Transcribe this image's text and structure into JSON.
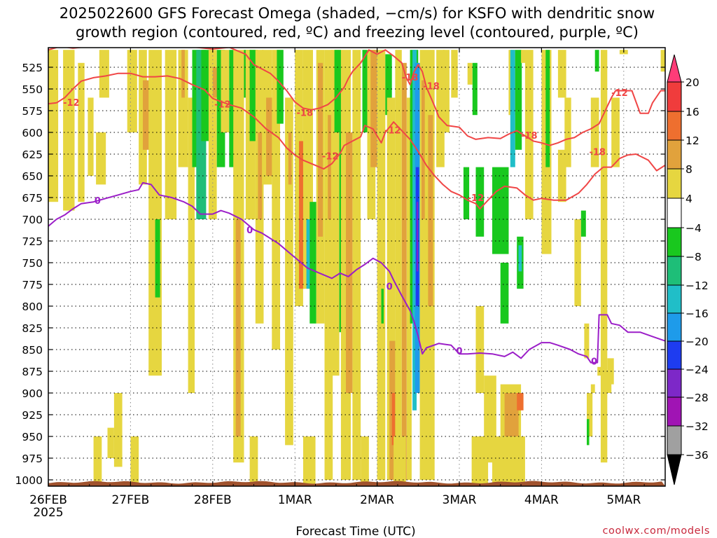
{
  "chart_data": {
    "type": "heatmap",
    "title": "2025022600 GFS Forecast Omega (shaded, −cm/s) for KSFO with dendritic snow",
    "subtitle": "growth region (contoured, red, ºC) and freezing level (contoured, purple, ºC)",
    "xlabel": "Forecast Time (UTC)",
    "ylabel": "",
    "x_ticks": [
      "26FEB",
      "27FEB",
      "28FEB",
      "1MAR",
      "2MAR",
      "3MAR",
      "4MAR",
      "5MAR"
    ],
    "x_year": "2025",
    "x_range_days": [
      0,
      7.5
    ],
    "y_ticks": [
      525,
      550,
      575,
      600,
      625,
      650,
      675,
      700,
      725,
      750,
      775,
      800,
      825,
      850,
      875,
      900,
      925,
      950,
      975,
      1000
    ],
    "y_range_hpa": [
      505,
      1012
    ],
    "grid": true,
    "colorbar": {
      "labels": [
        "20",
        "16",
        "12",
        "8",
        "4",
        "−4",
        "−8",
        "−12",
        "−16",
        "−20",
        "−24",
        "−28",
        "−32",
        "−36"
      ],
      "colors": [
        "#ff3c78",
        "#f03c3c",
        "#ee6f2f",
        "#e1a23c",
        "#e6d640",
        "#ffffff",
        "#19c81e",
        "#1ebe78",
        "#20bec8",
        "#1e9bea",
        "#1e3cf0",
        "#7d28c8",
        "#a014b4",
        "#a0a0a0",
        "#000000"
      ]
    },
    "contour_labels": {
      "dgz_red": [
        "-12",
        "-12",
        "-18",
        "-12",
        "-18",
        "-18",
        "-12",
        "-18",
        "-12",
        "-18",
        "-12"
      ],
      "freezing_purple": [
        "0",
        "0",
        "0",
        "0",
        "0"
      ]
    },
    "series": [
      {
        "name": "-12",
        "color": "#f04646",
        "points": [
          [
            0.0,
            567
          ],
          [
            0.1,
            566
          ],
          [
            0.2,
            560
          ],
          [
            0.3,
            550
          ],
          [
            0.4,
            541
          ],
          [
            0.55,
            537
          ],
          [
            0.7,
            535
          ],
          [
            0.85,
            532
          ],
          [
            1.0,
            532
          ],
          [
            1.15,
            536
          ],
          [
            1.3,
            536
          ],
          [
            1.45,
            535
          ],
          [
            1.6,
            538
          ],
          [
            1.75,
            545
          ],
          [
            1.9,
            551
          ],
          [
            2.0,
            561
          ],
          [
            2.2,
            568
          ],
          [
            2.35,
            572
          ],
          [
            2.5,
            582
          ],
          [
            2.65,
            596
          ],
          [
            2.8,
            606
          ],
          [
            2.9,
            618
          ],
          [
            3.0,
            626
          ],
          [
            3.1,
            632
          ],
          [
            3.25,
            638
          ],
          [
            3.35,
            642
          ],
          [
            3.45,
            636
          ],
          [
            3.55,
            624
          ],
          [
            3.6,
            615
          ],
          [
            3.7,
            610
          ],
          [
            3.8,
            605
          ],
          [
            3.85,
            592
          ],
          [
            3.95,
            596
          ],
          [
            4.05,
            612
          ],
          [
            4.1,
            600
          ],
          [
            4.2,
            588
          ],
          [
            4.3,
            598
          ],
          [
            4.4,
            608
          ],
          [
            4.5,
            622
          ],
          [
            4.55,
            630
          ],
          [
            4.6,
            638
          ],
          [
            4.7,
            650
          ],
          [
            4.8,
            660
          ],
          [
            4.9,
            668
          ],
          [
            5.0,
            672
          ],
          [
            5.1,
            678
          ],
          [
            5.2,
            682
          ],
          [
            5.25,
            688
          ],
          [
            5.35,
            678
          ],
          [
            5.45,
            668
          ],
          [
            5.55,
            662
          ],
          [
            5.7,
            664
          ],
          [
            5.8,
            672
          ],
          [
            5.9,
            678
          ],
          [
            6.0,
            676
          ],
          [
            6.15,
            678
          ],
          [
            6.3,
            678
          ],
          [
            6.45,
            670
          ],
          [
            6.55,
            660
          ],
          [
            6.65,
            648
          ],
          [
            6.75,
            640
          ],
          [
            6.85,
            640
          ],
          [
            6.95,
            630
          ],
          [
            7.05,
            626
          ],
          [
            7.15,
            625
          ],
          [
            7.3,
            632
          ],
          [
            7.4,
            644
          ],
          [
            7.5,
            638
          ]
        ]
      },
      {
        "name": "-18",
        "color": "#f04646",
        "points": [
          [
            0.0,
            505
          ],
          [
            0.15,
            501
          ],
          [
            0.3,
            503
          ],
          [
            0.5,
            501
          ],
          [
            0.7,
            500
          ],
          [
            1.0,
            500
          ],
          [
            1.4,
            499
          ],
          [
            1.8,
            502
          ],
          [
            2.0,
            504
          ],
          [
            2.2,
            502
          ],
          [
            2.4,
            510
          ],
          [
            2.5,
            522
          ],
          [
            2.6,
            527
          ],
          [
            2.7,
            532
          ],
          [
            2.8,
            541
          ],
          [
            2.9,
            552
          ],
          [
            3.0,
            565
          ],
          [
            3.1,
            572
          ],
          [
            3.2,
            574
          ],
          [
            3.3,
            572
          ],
          [
            3.4,
            568
          ],
          [
            3.5,
            560
          ],
          [
            3.6,
            548
          ],
          [
            3.65,
            538
          ],
          [
            3.7,
            530
          ],
          [
            3.8,
            520
          ],
          [
            3.9,
            505
          ],
          [
            4.0,
            510
          ],
          [
            4.1,
            505
          ],
          [
            4.2,
            512
          ],
          [
            4.3,
            520
          ],
          [
            4.35,
            536
          ],
          [
            4.4,
            545
          ],
          [
            4.45,
            530
          ],
          [
            4.5,
            522
          ],
          [
            4.55,
            530
          ],
          [
            4.6,
            548
          ],
          [
            4.7,
            570
          ],
          [
            4.75,
            582
          ],
          [
            4.85,
            592
          ],
          [
            5.0,
            594
          ],
          [
            5.1,
            604
          ],
          [
            5.2,
            608
          ],
          [
            5.35,
            606
          ],
          [
            5.5,
            607
          ],
          [
            5.6,
            602
          ],
          [
            5.7,
            598
          ],
          [
            5.8,
            604
          ],
          [
            5.9,
            610
          ],
          [
            6.0,
            612
          ],
          [
            6.1,
            615
          ],
          [
            6.2,
            612
          ],
          [
            6.3,
            608
          ],
          [
            6.4,
            606
          ],
          [
            6.5,
            600
          ],
          [
            6.6,
            596
          ],
          [
            6.7,
            590
          ],
          [
            6.75,
            580
          ],
          [
            6.8,
            570
          ],
          [
            6.85,
            560
          ],
          [
            6.9,
            552
          ],
          [
            7.0,
            552
          ],
          [
            7.1,
            552
          ],
          [
            7.15,
            565
          ],
          [
            7.2,
            578
          ],
          [
            7.3,
            578
          ],
          [
            7.35,
            566
          ],
          [
            7.45,
            552
          ],
          [
            7.5,
            552
          ]
        ]
      },
      {
        "name": "0",
        "color": "#9b1ec8",
        "points": [
          [
            0.0,
            708
          ],
          [
            0.1,
            700
          ],
          [
            0.2,
            695
          ],
          [
            0.3,
            688
          ],
          [
            0.4,
            682
          ],
          [
            0.55,
            680
          ],
          [
            0.7,
            676
          ],
          [
            0.85,
            672
          ],
          [
            1.0,
            668
          ],
          [
            1.1,
            666
          ],
          [
            1.15,
            658
          ],
          [
            1.25,
            660
          ],
          [
            1.35,
            672
          ],
          [
            1.5,
            675
          ],
          [
            1.65,
            680
          ],
          [
            1.75,
            685
          ],
          [
            1.85,
            694
          ],
          [
            2.0,
            694
          ],
          [
            2.1,
            690
          ],
          [
            2.2,
            693
          ],
          [
            2.35,
            700
          ],
          [
            2.5,
            712
          ],
          [
            2.6,
            716
          ],
          [
            2.7,
            722
          ],
          [
            2.8,
            728
          ],
          [
            2.95,
            740
          ],
          [
            3.05,
            748
          ],
          [
            3.15,
            756
          ],
          [
            3.3,
            762
          ],
          [
            3.45,
            768
          ],
          [
            3.55,
            762
          ],
          [
            3.65,
            766
          ],
          [
            3.75,
            758
          ],
          [
            3.85,
            752
          ],
          [
            3.95,
            745
          ],
          [
            4.05,
            750
          ],
          [
            4.15,
            760
          ],
          [
            4.2,
            770
          ],
          [
            4.3,
            788
          ],
          [
            4.4,
            805
          ],
          [
            4.45,
            818
          ],
          [
            4.5,
            835
          ],
          [
            4.55,
            855
          ],
          [
            4.6,
            848
          ],
          [
            4.75,
            843
          ],
          [
            4.9,
            845
          ],
          [
            5.0,
            855
          ],
          [
            5.1,
            855
          ],
          [
            5.25,
            854
          ],
          [
            5.4,
            855
          ],
          [
            5.55,
            858
          ],
          [
            5.65,
            853
          ],
          [
            5.75,
            860
          ],
          [
            5.85,
            850
          ],
          [
            6.0,
            842
          ],
          [
            6.1,
            842
          ],
          [
            6.2,
            845
          ],
          [
            6.35,
            850
          ],
          [
            6.45,
            855
          ],
          [
            6.55,
            858
          ],
          [
            6.6,
            865
          ],
          [
            6.68,
            865
          ],
          [
            6.7,
            810
          ],
          [
            6.8,
            810
          ],
          [
            6.85,
            820
          ],
          [
            6.95,
            822
          ],
          [
            7.05,
            830
          ],
          [
            7.2,
            830
          ],
          [
            7.35,
            835
          ],
          [
            7.5,
            840
          ]
        ]
      }
    ]
  },
  "credit": "coolwx.com/models"
}
